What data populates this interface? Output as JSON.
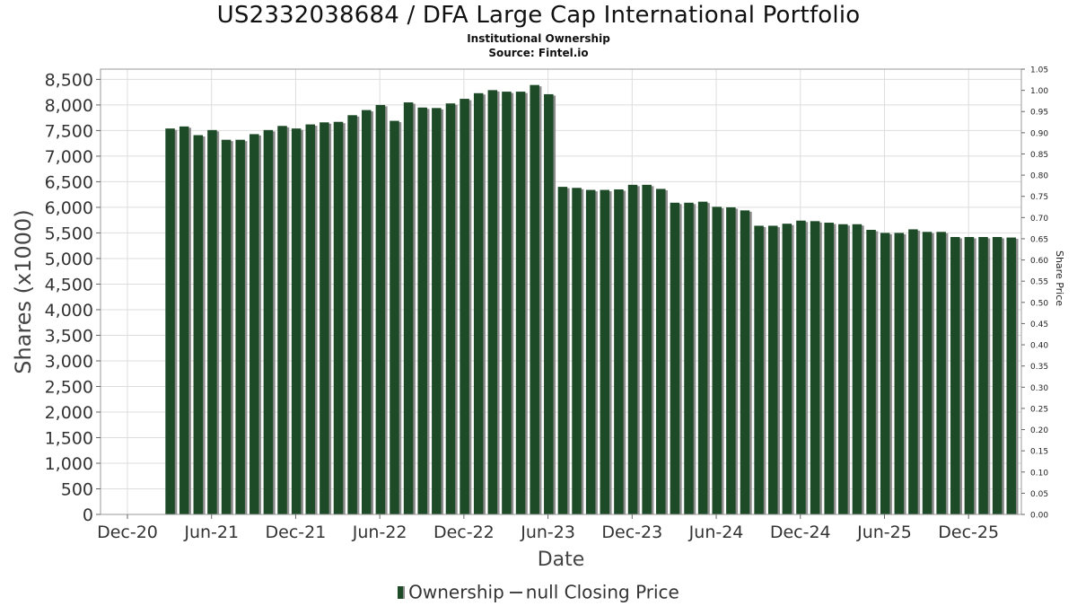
{
  "title": "US2332038684 / DFA Large Cap International Portfolio",
  "subtitle": "Institutional Ownership",
  "source": "Source: Fintel.io",
  "legend": {
    "ownership": "Ownership",
    "closing_price": "null Closing Price"
  },
  "colors": {
    "bar": "#1d4a27",
    "bar_shadow": "#8c8c8c",
    "grid": "#dddddd"
  },
  "chart_data": {
    "type": "bar",
    "xlabel": "Date",
    "ylabel": "Shares (x1000)",
    "y2label": "Share Price",
    "ylim": [
      0,
      8700
    ],
    "y2lim": [
      0,
      1.05
    ],
    "yticks": [
      "0",
      "500",
      "1,000",
      "1,500",
      "2,000",
      "2,500",
      "3,000",
      "3,500",
      "4,000",
      "4,500",
      "5,000",
      "5,500",
      "6,000",
      "6,500",
      "7,000",
      "7,500",
      "8,000",
      "8,500"
    ],
    "y2ticks": [
      "0.00",
      "0.05",
      "0.10",
      "0.15",
      "0.20",
      "0.25",
      "0.30",
      "0.35",
      "0.40",
      "0.45",
      "0.50",
      "0.55",
      "0.60",
      "0.65",
      "0.70",
      "0.75",
      "0.80",
      "0.85",
      "0.90",
      "0.95",
      "1.00",
      "1.05"
    ],
    "xticks": [
      "Dec-20",
      "Jun-21",
      "Dec-21",
      "Jun-22",
      "Dec-22",
      "Jun-23",
      "Dec-23",
      "Jun-24",
      "Dec-24",
      "Jun-25",
      "Dec-25"
    ],
    "grid": true,
    "legend_position": "bottom",
    "series": [
      {
        "name": "Ownership",
        "values": [
          7540,
          7580,
          7410,
          7510,
          7320,
          7320,
          7430,
          7510,
          7590,
          7540,
          7620,
          7660,
          7670,
          7800,
          7900,
          8000,
          7690,
          8050,
          7950,
          7940,
          8030,
          8120,
          8230,
          8290,
          8260,
          8260,
          8390,
          8210,
          6400,
          6380,
          6340,
          6340,
          6350,
          6440,
          6440,
          6360,
          6090,
          6090,
          6110,
          6010,
          6000,
          5940,
          5640,
          5640,
          5680,
          5740,
          5730,
          5700,
          5670,
          5670,
          5560,
          5500,
          5500,
          5570,
          5520,
          5520,
          5420,
          5420,
          5420,
          5420,
          5410
        ]
      }
    ]
  }
}
